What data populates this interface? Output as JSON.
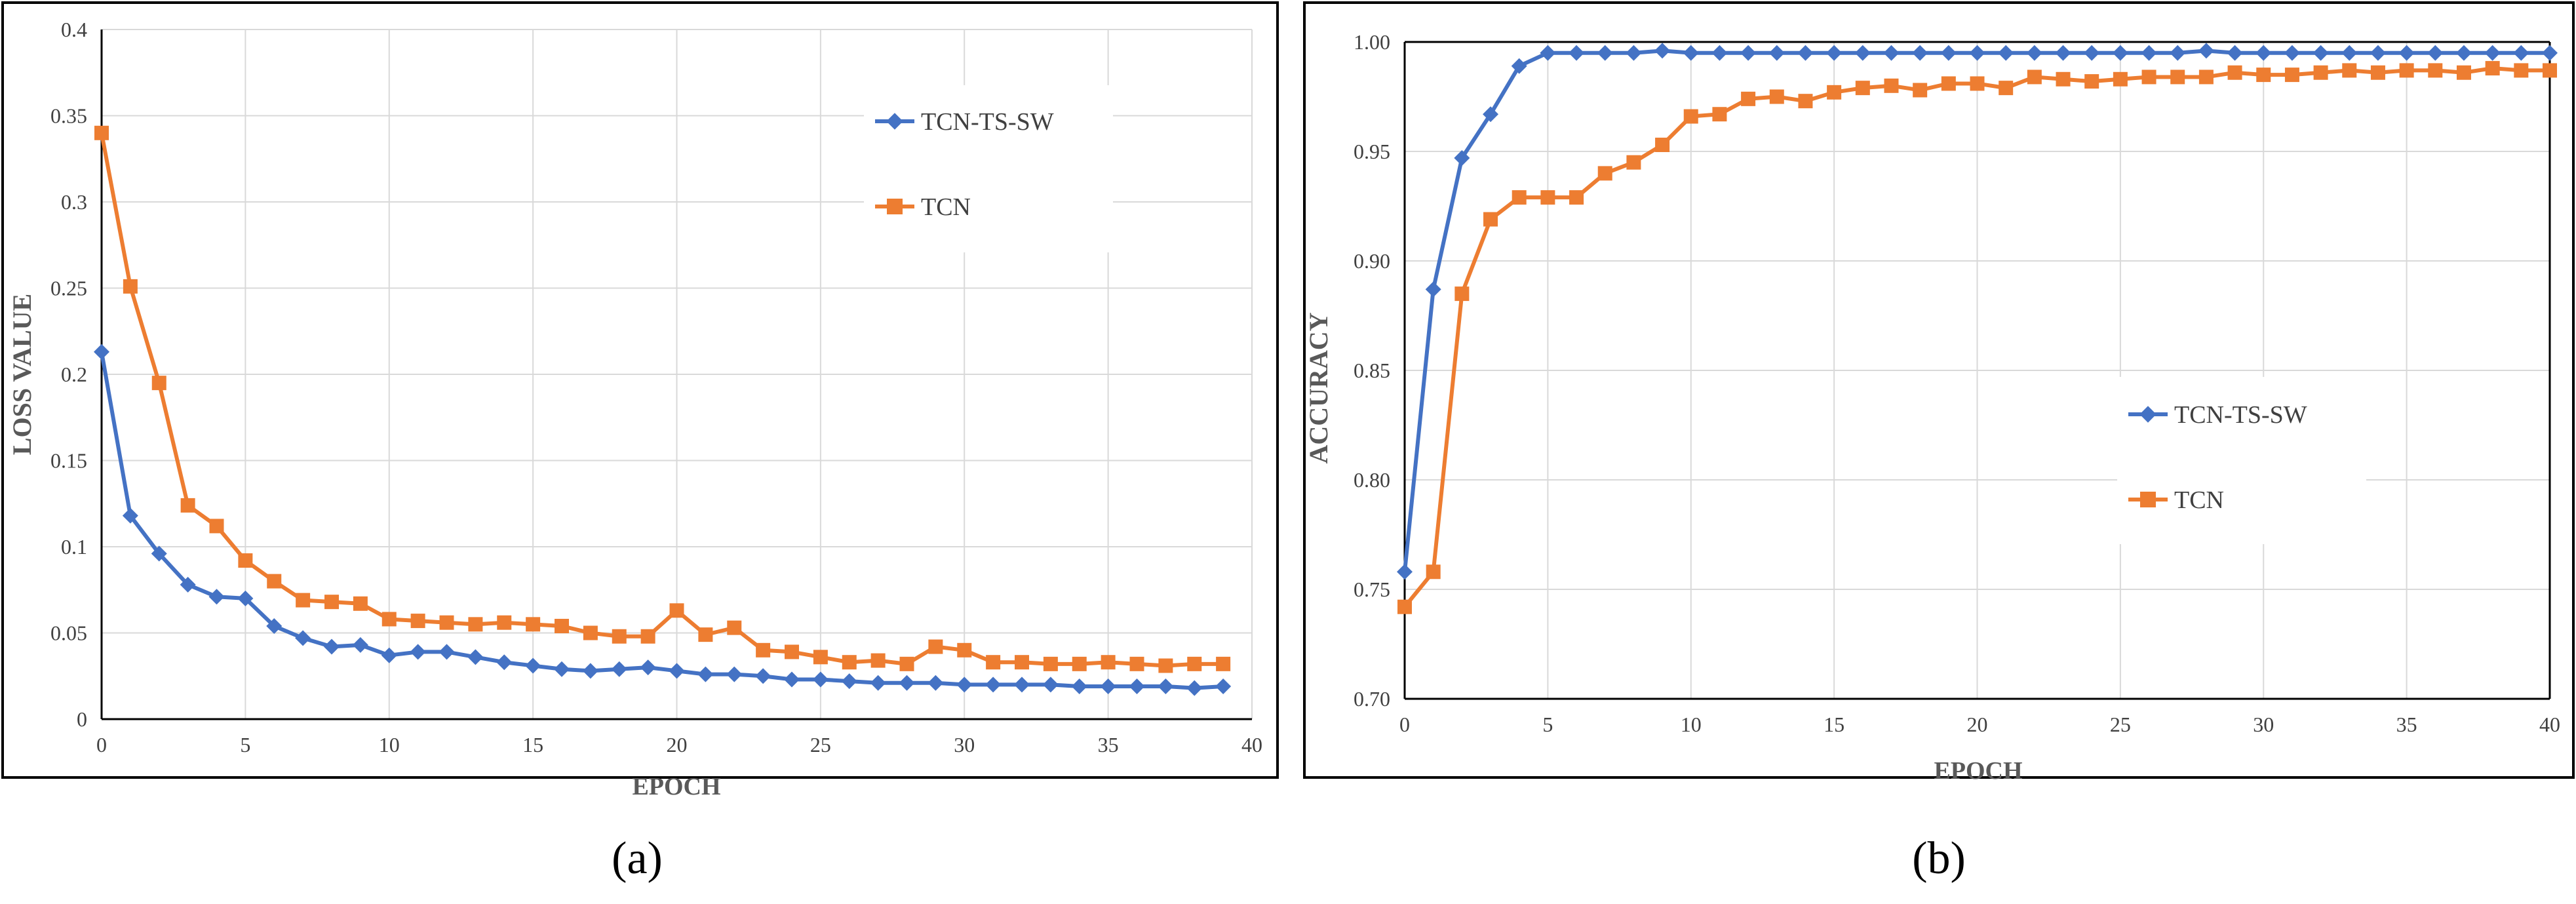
{
  "colors": {
    "tcn_ts_sw": "#4472C4",
    "tcn": "#ED7D31",
    "grid": "#d9d9d9",
    "axis": "#000000"
  },
  "chart_data": [
    {
      "type": "line",
      "panel_label": "(a)",
      "xlabel": "EPOCH",
      "ylabel": "LOSS VALUE",
      "xlim": [
        0,
        40
      ],
      "ylim": [
        0,
        0.4
      ],
      "xticks": [
        0,
        5,
        10,
        15,
        20,
        25,
        30,
        35,
        40
      ],
      "xtick_labels": [
        "0",
        "5",
        "10",
        "15",
        "20",
        "25",
        "30",
        "35",
        "40"
      ],
      "yticks": [
        0,
        0.05,
        0.1,
        0.15,
        0.2,
        0.25,
        0.3,
        0.35,
        0.4
      ],
      "ytick_labels": [
        "0",
        "0.05",
        "0.1",
        "0.15",
        "0.2",
        "0.25",
        "0.3",
        "0.35",
        "0.4"
      ],
      "vgrid": [
        0,
        5,
        10,
        15,
        20,
        25,
        30,
        35,
        40
      ],
      "hgrid": [
        0.05,
        0.1,
        0.15,
        0.2,
        0.25,
        0.3,
        0.35,
        0.4
      ],
      "legend_position": "top-right",
      "series": [
        {
          "name": "TCN-TS-SW",
          "marker": "diamond",
          "x": [
            0,
            1,
            2,
            3,
            4,
            5,
            6,
            7,
            8,
            9,
            10,
            11,
            12,
            13,
            14,
            15,
            16,
            17,
            18,
            19,
            20,
            21,
            22,
            23,
            24,
            25,
            26,
            27,
            28,
            29,
            30,
            31,
            32,
            33,
            34,
            35,
            36,
            37,
            38,
            39
          ],
          "values": [
            0.213,
            0.118,
            0.096,
            0.078,
            0.071,
            0.07,
            0.054,
            0.047,
            0.042,
            0.043,
            0.037,
            0.039,
            0.039,
            0.036,
            0.033,
            0.031,
            0.029,
            0.028,
            0.029,
            0.03,
            0.028,
            0.026,
            0.026,
            0.025,
            0.023,
            0.023,
            0.022,
            0.021,
            0.021,
            0.021,
            0.02,
            0.02,
            0.02,
            0.02,
            0.019,
            0.019,
            0.019,
            0.019,
            0.018,
            0.019
          ]
        },
        {
          "name": "TCN",
          "marker": "square",
          "x": [
            0,
            1,
            2,
            3,
            4,
            5,
            6,
            7,
            8,
            9,
            10,
            11,
            12,
            13,
            14,
            15,
            16,
            17,
            18,
            19,
            20,
            21,
            22,
            23,
            24,
            25,
            26,
            27,
            28,
            29,
            30,
            31,
            32,
            33,
            34,
            35,
            36,
            37,
            38,
            39
          ],
          "values": [
            0.34,
            0.251,
            0.195,
            0.124,
            0.112,
            0.092,
            0.08,
            0.069,
            0.068,
            0.067,
            0.058,
            0.057,
            0.056,
            0.055,
            0.056,
            0.055,
            0.054,
            0.05,
            0.048,
            0.048,
            0.063,
            0.049,
            0.053,
            0.04,
            0.039,
            0.036,
            0.033,
            0.034,
            0.032,
            0.042,
            0.04,
            0.033,
            0.033,
            0.032,
            0.032,
            0.033,
            0.032,
            0.031,
            0.032,
            0.032
          ]
        }
      ]
    },
    {
      "type": "line",
      "panel_label": "(b)",
      "xlabel": "EPOCH",
      "ylabel": "ACCURACY",
      "xlim": [
        0,
        40
      ],
      "ylim": [
        0.7,
        1.0
      ],
      "xticks": [
        0,
        5,
        10,
        15,
        20,
        25,
        30,
        35,
        40
      ],
      "xtick_labels": [
        "0",
        "5",
        "10",
        "15",
        "20",
        "25",
        "30",
        "35",
        "40"
      ],
      "yticks": [
        0.7,
        0.75,
        0.8,
        0.85,
        0.9,
        0.95,
        1.0
      ],
      "ytick_labels": [
        "0.70",
        "0.75",
        "0.80",
        "0.85",
        "0.90",
        "0.95",
        "1.00"
      ],
      "vgrid": [
        5,
        10,
        15,
        20,
        25,
        30,
        35
      ],
      "hgrid": [
        0.75,
        0.8,
        0.85,
        0.9,
        0.95
      ],
      "legend_position": "center-right",
      "series": [
        {
          "name": "TCN-TS-SW",
          "marker": "diamond",
          "x": [
            0,
            1,
            2,
            3,
            4,
            5,
            6,
            7,
            8,
            9,
            10,
            11,
            12,
            13,
            14,
            15,
            16,
            17,
            18,
            19,
            20,
            21,
            22,
            23,
            24,
            25,
            26,
            27,
            28,
            29,
            30,
            31,
            32,
            33,
            34,
            35,
            36,
            37,
            38,
            39,
            40
          ],
          "values": [
            0.758,
            0.887,
            0.947,
            0.967,
            0.989,
            0.995,
            0.995,
            0.995,
            0.995,
            0.996,
            0.995,
            0.995,
            0.995,
            0.995,
            0.995,
            0.995,
            0.995,
            0.995,
            0.995,
            0.995,
            0.995,
            0.995,
            0.995,
            0.995,
            0.995,
            0.995,
            0.995,
            0.995,
            0.996,
            0.995,
            0.995,
            0.995,
            0.995,
            0.995,
            0.995,
            0.995,
            0.995,
            0.995,
            0.995,
            0.995,
            0.995
          ]
        },
        {
          "name": "TCN",
          "marker": "square",
          "x": [
            0,
            1,
            2,
            3,
            4,
            5,
            6,
            7,
            8,
            9,
            10,
            11,
            12,
            13,
            14,
            15,
            16,
            17,
            18,
            19,
            20,
            21,
            22,
            23,
            24,
            25,
            26,
            27,
            28,
            29,
            30,
            31,
            32,
            33,
            34,
            35,
            36,
            37,
            38,
            39,
            40
          ],
          "values": [
            0.742,
            0.758,
            0.885,
            0.919,
            0.929,
            0.929,
            0.929,
            0.94,
            0.945,
            0.953,
            0.966,
            0.967,
            0.974,
            0.975,
            0.973,
            0.977,
            0.979,
            0.98,
            0.978,
            0.981,
            0.981,
            0.979,
            0.984,
            0.983,
            0.982,
            0.983,
            0.984,
            0.984,
            0.984,
            0.986,
            0.985,
            0.985,
            0.986,
            0.987,
            0.986,
            0.987,
            0.987,
            0.986,
            0.988,
            0.987,
            0.987
          ]
        }
      ]
    }
  ]
}
